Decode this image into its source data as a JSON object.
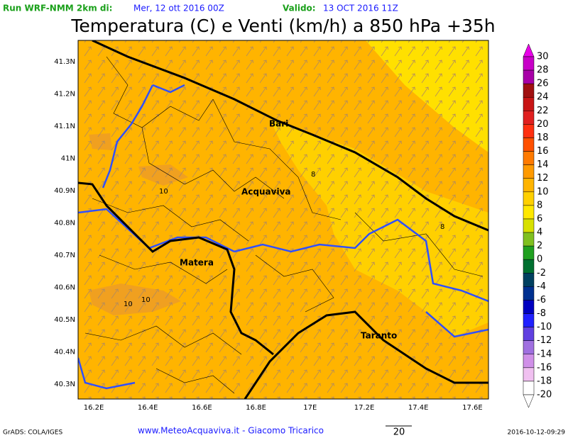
{
  "header": {
    "run_label": "Run WRF-NMM 2km di:",
    "run_date": "Mer, 12 ott 2016 00Z",
    "valid_label": "Valido:",
    "valid_date": "13 OCT 2016 11Z",
    "title": "Temperatura (C) e Venti (km/h) a 850 hPa +35h"
  },
  "map": {
    "lat_labels": [
      "41.3N",
      "41.2N",
      "41.1N",
      "41N",
      "40.9N",
      "40.8N",
      "40.7N",
      "40.6N",
      "40.5N",
      "40.4N",
      "40.3N"
    ],
    "lon_labels": [
      "16.2E",
      "16.4E",
      "16.6E",
      "16.8E",
      "17E",
      "17.2E",
      "17.4E",
      "17.6E"
    ],
    "cities": [
      "Bari",
      "Acquaviva",
      "Matera",
      "Taranto"
    ],
    "contour_labels": [
      "10",
      "10",
      "10",
      "8",
      "8"
    ]
  },
  "colorbar": {
    "labels": [
      "30",
      "28",
      "26",
      "24",
      "22",
      "20",
      "18",
      "16",
      "14",
      "12",
      "10",
      "8",
      "6",
      "4",
      "2",
      "0",
      "-2",
      "-4",
      "-6",
      "-8",
      "-10",
      "-12",
      "-14",
      "-16",
      "-18",
      "-20"
    ]
  },
  "footer": {
    "left": "GrADS: COLA/IGES",
    "center": "www.MeteoAcquaviva.it - Giacomo Tricarico",
    "vector_scale": "20",
    "right": "2016-10-12-09:29"
  }
}
